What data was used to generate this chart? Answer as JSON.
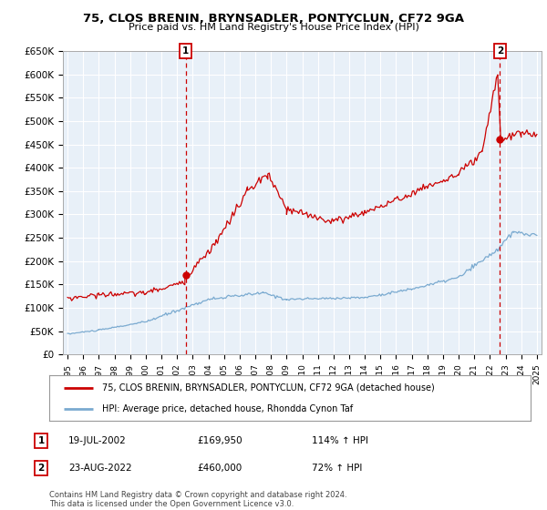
{
  "title": "75, CLOS BRENIN, BRYNSADLER, PONTYCLUN, CF72 9GA",
  "subtitle": "Price paid vs. HM Land Registry's House Price Index (HPI)",
  "ylim": [
    0,
    650000
  ],
  "yticks": [
    0,
    50000,
    100000,
    150000,
    200000,
    250000,
    300000,
    350000,
    400000,
    450000,
    500000,
    550000,
    600000,
    650000
  ],
  "ytick_labels": [
    "£0",
    "£50K",
    "£100K",
    "£150K",
    "£200K",
    "£250K",
    "£300K",
    "£350K",
    "£400K",
    "£450K",
    "£500K",
    "£550K",
    "£600K",
    "£650K"
  ],
  "xlim_start": 1994.7,
  "xlim_end": 2025.3,
  "sale1_x": 2002.54,
  "sale1_y": 169950,
  "sale1_label": "1",
  "sale1_date": "19-JUL-2002",
  "sale1_price": "£169,950",
  "sale1_hpi": "114% ↑ HPI",
  "sale2_x": 2022.64,
  "sale2_y": 460000,
  "sale2_label": "2",
  "sale2_date": "23-AUG-2022",
  "sale2_price": "£460,000",
  "sale2_hpi": "72% ↑ HPI",
  "legend_line1": "75, CLOS BRENIN, BRYNSADLER, PONTYCLUN, CF72 9GA (detached house)",
  "legend_line2": "HPI: Average price, detached house, Rhondda Cynon Taf",
  "footer": "Contains HM Land Registry data © Crown copyright and database right 2024.\nThis data is licensed under the Open Government Licence v3.0.",
  "red_color": "#cc0000",
  "blue_color": "#7aaad0",
  "chart_bg": "#e8f0f8",
  "background_color": "#ffffff",
  "grid_color": "#ffffff"
}
